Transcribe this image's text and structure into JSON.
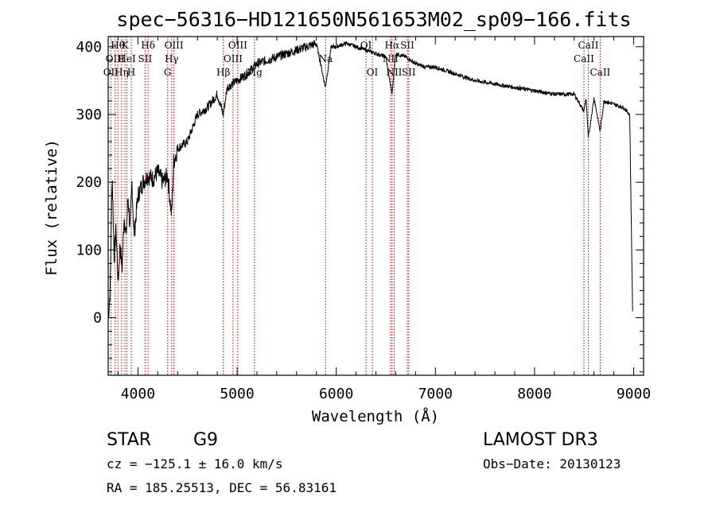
{
  "chart_data": {
    "type": "line",
    "title": "spec−56316−HD121650N561653M02_sp09−166.fits",
    "xlabel": "Wavelength (Å)",
    "ylabel": "Flux (relative)",
    "xlim": [
      3700,
      9100
    ],
    "ylim": [
      -85,
      415
    ],
    "xticks": [
      4000,
      5000,
      6000,
      7000,
      8000,
      9000
    ],
    "yticks": [
      0,
      100,
      200,
      300,
      400
    ],
    "series": [
      {
        "name": "spectrum",
        "x": [
          3700,
          3720,
          3740,
          3760,
          3780,
          3800,
          3820,
          3840,
          3860,
          3880,
          3900,
          3920,
          3940,
          3960,
          3980,
          4000,
          4050,
          4100,
          4150,
          4200,
          4250,
          4300,
          4340,
          4360,
          4400,
          4450,
          4500,
          4600,
          4700,
          4800,
          4861,
          4900,
          5000,
          5100,
          5200,
          5300,
          5400,
          5500,
          5600,
          5700,
          5800,
          5890,
          5950,
          6000,
          6100,
          6200,
          6300,
          6400,
          6500,
          6563,
          6600,
          6700,
          6800,
          6900,
          7000,
          7200,
          7400,
          7600,
          7800,
          8000,
          8200,
          8400,
          8498,
          8520,
          8542,
          8600,
          8662,
          8700,
          8800,
          8900,
          8960,
          8990
        ],
        "y": [
          0,
          40,
          215,
          90,
          130,
          50,
          110,
          70,
          150,
          120,
          180,
          130,
          200,
          120,
          150,
          180,
          200,
          210,
          205,
          215,
          200,
          210,
          150,
          230,
          250,
          255,
          260,
          300,
          310,
          330,
          300,
          340,
          350,
          360,
          375,
          380,
          385,
          390,
          395,
          400,
          405,
          340,
          400,
          400,
          405,
          400,
          395,
          390,
          385,
          330,
          390,
          385,
          375,
          370,
          370,
          360,
          350,
          345,
          340,
          335,
          330,
          330,
          305,
          325,
          265,
          325,
          275,
          320,
          315,
          310,
          300,
          0
        ]
      }
    ],
    "line_markers": [
      {
        "wave": 3727,
        "label": "OII",
        "row": 2
      },
      {
        "wave": 3770,
        "label": "OIII",
        "row": 1
      },
      {
        "wave": 3797,
        "label": "Hθ",
        "row": 0
      },
      {
        "wave": 3835,
        "label": "Hη",
        "row": 2
      },
      {
        "wave": 3869,
        "label": "K",
        "row": 0
      },
      {
        "wave": 3889,
        "label": "HeI",
        "row": 1
      },
      {
        "wave": 3933,
        "label": "H",
        "row": 2
      },
      {
        "wave": 4072,
        "label": "SII",
        "row": 1
      },
      {
        "wave": 4102,
        "label": "Hδ",
        "row": 0
      },
      {
        "wave": 4300,
        "label": "G",
        "row": 2
      },
      {
        "wave": 4340,
        "label": "Hγ",
        "row": 1
      },
      {
        "wave": 4363,
        "label": "OIII",
        "row": 0
      },
      {
        "wave": 4861,
        "label": "Hβ",
        "row": 2
      },
      {
        "wave": 4959,
        "label": "OIII",
        "row": 1
      },
      {
        "wave": 5007,
        "label": "OIII",
        "row": 0
      },
      {
        "wave": 5175,
        "label": "Mg",
        "row": 2
      },
      {
        "wave": 5893,
        "label": "Na",
        "row": 1
      },
      {
        "wave": 6300,
        "label": "OI",
        "row": 0
      },
      {
        "wave": 6364,
        "label": "OI",
        "row": 2
      },
      {
        "wave": 6548,
        "label": "NII",
        "row": 1
      },
      {
        "wave": 6563,
        "label": "Hα",
        "row": 0
      },
      {
        "wave": 6584,
        "label": "NII",
        "row": 2
      },
      {
        "wave": 6717,
        "label": "SII",
        "row": 0
      },
      {
        "wave": 6731,
        "label": "SII",
        "row": 2
      },
      {
        "wave": 8498,
        "label": "CaII",
        "row": 1
      },
      {
        "wave": 8542,
        "label": "CaII",
        "row": 0
      },
      {
        "wave": 8662,
        "label": "CaII",
        "row": 2
      }
    ]
  },
  "info": {
    "class": "STAR",
    "subclass": "G9",
    "survey": "LAMOST DR3",
    "cz": "cz = −125.1 ± 16.0 km/s",
    "obs_date": "Obs−Date: 20130123",
    "coords": "RA = 185.25513, DEC =  56.83161"
  }
}
